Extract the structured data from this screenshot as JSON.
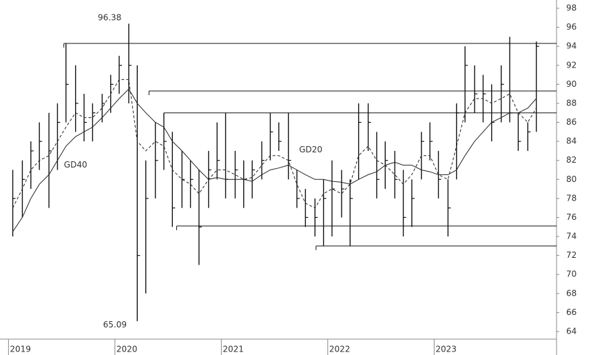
{
  "chart_data": {
    "type": "ohlc",
    "x": [
      2019.04,
      2019.13,
      2019.21,
      2019.29,
      2019.38,
      2019.46,
      2019.54,
      2019.63,
      2019.71,
      2019.79,
      2019.88,
      2019.96,
      2020.04,
      2020.13,
      2020.21,
      2020.29,
      2020.38,
      2020.46,
      2020.54,
      2020.63,
      2020.71,
      2020.79,
      2020.88,
      2020.96,
      2021.04,
      2021.13,
      2021.21,
      2021.29,
      2021.38,
      2021.46,
      2021.54,
      2021.63,
      2021.71,
      2021.79,
      2021.88,
      2021.96,
      2022.04,
      2022.13,
      2022.21,
      2022.29,
      2022.38,
      2022.46,
      2022.54,
      2022.63,
      2022.71,
      2022.79,
      2022.88,
      2022.96,
      2023.04,
      2023.13,
      2023.21,
      2023.29,
      2023.38,
      2023.46,
      2023.54,
      2023.63,
      2023.71,
      2023.79,
      2023.88,
      2023.96
    ],
    "high": [
      81,
      82,
      84,
      86,
      87,
      88,
      94.3,
      92,
      89,
      88,
      89,
      91,
      93,
      96.38,
      92,
      82,
      86,
      87,
      85,
      83,
      82,
      81,
      83,
      86,
      87,
      83,
      82,
      82,
      84,
      87,
      86,
      87,
      81,
      79,
      78,
      80,
      82,
      81,
      80,
      88,
      88,
      85,
      84,
      83,
      81,
      80,
      85,
      86,
      83,
      80,
      88,
      94,
      92,
      91,
      90,
      92,
      95,
      87,
      86,
      94.5
    ],
    "low": [
      74,
      76,
      79,
      81,
      77,
      81,
      86,
      85,
      84,
      84,
      86,
      87,
      89,
      88,
      65.09,
      68,
      78,
      81,
      75,
      77,
      77,
      71,
      77,
      80,
      78,
      78,
      77,
      78,
      80,
      82,
      83,
      80,
      77,
      75,
      74,
      73,
      74,
      76,
      73,
      80,
      83,
      78,
      79,
      78,
      74,
      75,
      80,
      82,
      78,
      74,
      80,
      86,
      87,
      86,
      84,
      86,
      86,
      83,
      83,
      85
    ],
    "close": [
      78,
      80,
      83,
      84,
      83,
      86,
      90,
      88,
      86,
      87,
      88,
      90,
      92,
      92,
      72,
      78,
      82,
      84,
      77,
      80,
      80,
      75,
      81,
      82,
      80,
      81,
      80,
      81,
      82,
      85,
      84,
      82,
      78,
      76,
      76,
      78,
      79,
      79,
      78,
      86,
      86,
      80,
      82,
      80,
      76,
      78,
      84,
      84,
      80,
      77,
      87,
      92,
      89,
      89,
      86,
      90,
      87,
      84,
      85,
      94
    ],
    "series": [
      {
        "name": "GD20",
        "style": "dashed",
        "color": "#222222",
        "values": [
          77,
          79,
          81,
          82,
          82.5,
          84,
          85.5,
          87,
          86.5,
          86.5,
          87.5,
          89,
          90.5,
          90.5,
          84,
          83,
          84,
          83.5,
          81,
          80,
          79.5,
          78.5,
          80,
          81,
          81,
          80.5,
          80,
          80.2,
          81.5,
          82.5,
          82.5,
          82,
          79.5,
          77.5,
          77,
          78.5,
          79,
          78.5,
          79.5,
          82.5,
          83.5,
          82,
          81.5,
          80.5,
          79.5,
          80.5,
          82.5,
          82.5,
          80.5,
          80,
          83.5,
          87,
          88.5,
          88.5,
          88,
          88.5,
          89,
          87,
          86,
          87.5
        ]
      },
      {
        "name": "GD40",
        "style": "solid",
        "color": "#222222",
        "values": [
          74.5,
          76,
          78,
          79.5,
          80.5,
          82,
          83.5,
          84.5,
          85,
          85.5,
          86.5,
          87.5,
          88.5,
          89.5,
          88,
          87,
          86,
          85.5,
          84,
          83,
          82,
          81,
          80,
          80.2,
          80,
          80,
          80,
          79.8,
          80.5,
          81,
          81.2,
          81.5,
          81,
          80.5,
          80,
          80,
          79.8,
          79.7,
          79.5,
          80,
          80.5,
          80.8,
          81.5,
          81.8,
          81.5,
          81.5,
          81,
          80.8,
          80.5,
          80.5,
          81,
          82.5,
          84,
          85,
          86,
          86.5,
          87,
          87,
          87.5,
          88.5
        ]
      }
    ],
    "levels": [
      {
        "value": 94.3,
        "from": 2019.52
      },
      {
        "value": 89.3,
        "from": 2020.32
      },
      {
        "value": 87.0,
        "from": 2020.46
      },
      {
        "value": 75.1,
        "from": 2020.58
      },
      {
        "value": 73.0,
        "from": 2021.89
      }
    ],
    "annotations": [
      {
        "text": "96.38",
        "x": 2019.95,
        "y": 97.0
      },
      {
        "text": "65.09",
        "x": 2020.0,
        "y": 64.7
      },
      {
        "text": "GD20",
        "x": 2021.84,
        "y": 83.1
      },
      {
        "text": "GD40",
        "x": 2019.63,
        "y": 81.5
      }
    ],
    "xlim": [
      2018.92,
      2024.15
    ],
    "ylim": [
      63.2,
      98.87
    ],
    "xticks": [
      2019,
      2020,
      2021,
      2022,
      2023
    ],
    "yticks": [
      64,
      66,
      68,
      70,
      72,
      74,
      76,
      78,
      80,
      82,
      84,
      86,
      88,
      90,
      92,
      94,
      96,
      98
    ],
    "bar_color": "#111111",
    "level_color": "#111111"
  }
}
